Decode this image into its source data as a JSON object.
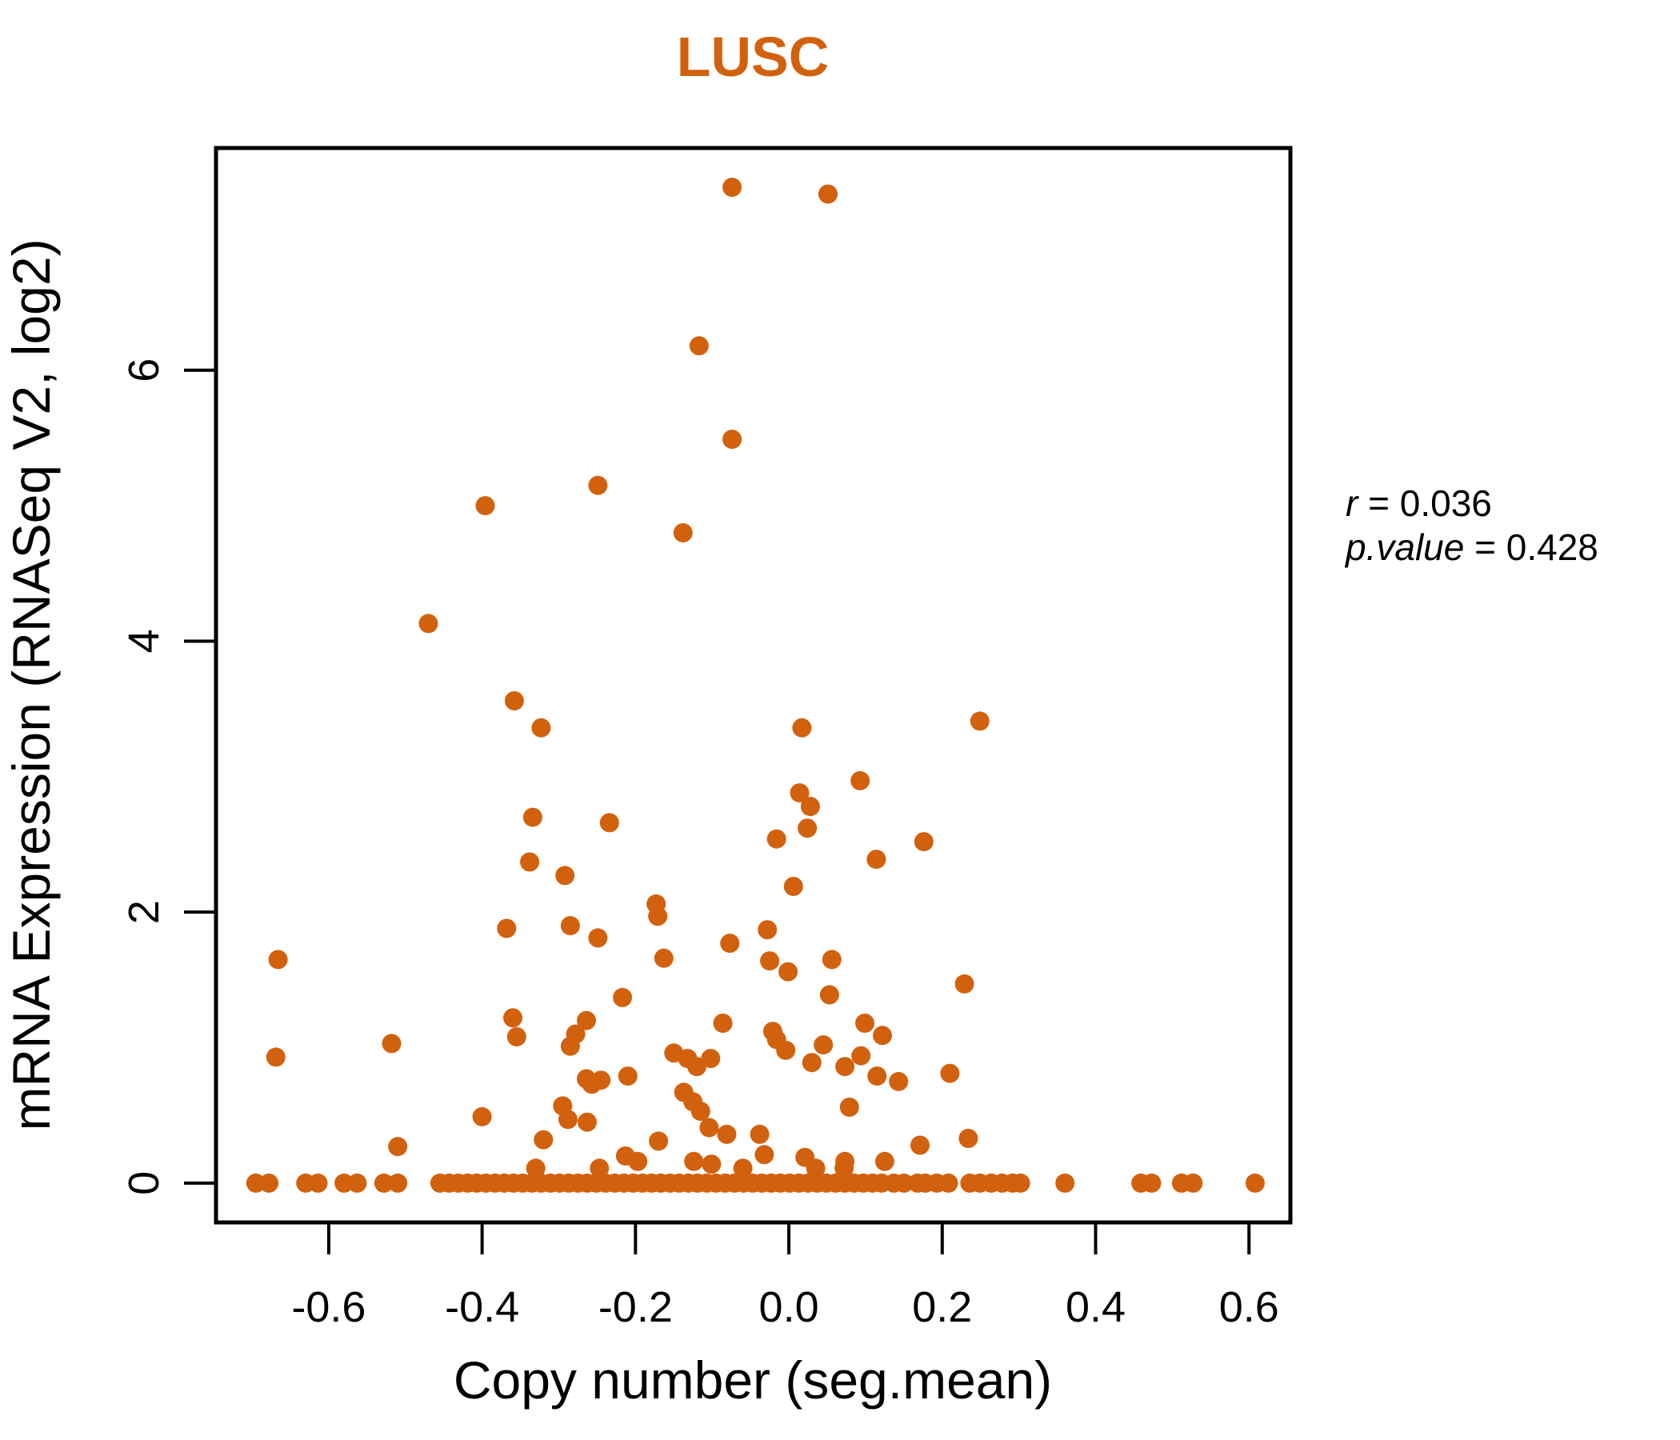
{
  "colors": {
    "accent": "#D2610D",
    "axis": "#000000",
    "background": "#FFFFFF"
  },
  "annotation": {
    "r_name": "r",
    "r_value": " = 0.036",
    "p_name": "p.value",
    "p_value": " = 0.428"
  },
  "chart_data": {
    "type": "scatter",
    "title": "LUSC",
    "xlabel": "Copy number (seg.mean)",
    "ylabel": "mRNA Expression (RNASeq V2, log2)",
    "xlim": [
      -0.747,
      0.654
    ],
    "ylim": [
      -0.29,
      7.64
    ],
    "x_ticks": [
      -0.6,
      -0.4,
      -0.2,
      0,
      0.2,
      0.4,
      0.6
    ],
    "x_tick_labels": [
      "-0.6",
      "-0.4",
      "-0.2",
      "0.0",
      "0.2",
      "0.4",
      "0.6"
    ],
    "y_ticks": [
      0,
      2,
      4,
      6
    ],
    "y_tick_labels": [
      "0",
      "2",
      "4",
      "6"
    ],
    "grid": false,
    "legend": "none",
    "point_color": "#D2610D",
    "point_radius_px": 12,
    "stats": {
      "r": 0.036,
      "p_value": 0.428
    },
    "points": [
      [
        -0.074,
        7.35
      ],
      [
        0.051,
        7.3
      ],
      [
        -0.117,
        6.18
      ],
      [
        -0.074,
        5.49
      ],
      [
        -0.249,
        5.15
      ],
      [
        -0.396,
        5.0
      ],
      [
        -0.138,
        4.8
      ],
      [
        -0.47,
        4.13
      ],
      [
        -0.358,
        3.56
      ],
      [
        -0.323,
        3.36
      ],
      [
        0.017,
        3.36
      ],
      [
        0.249,
        3.41
      ],
      [
        0.093,
        2.97
      ],
      [
        0.014,
        2.88
      ],
      [
        0.028,
        2.78
      ],
      [
        -0.334,
        2.7
      ],
      [
        -0.234,
        2.66
      ],
      [
        0.024,
        2.62
      ],
      [
        -0.016,
        2.54
      ],
      [
        0.176,
        2.52
      ],
      [
        0.114,
        2.39
      ],
      [
        -0.338,
        2.37
      ],
      [
        -0.292,
        2.27
      ],
      [
        0.006,
        2.19
      ],
      [
        -0.173,
        2.06
      ],
      [
        -0.171,
        1.97
      ],
      [
        -0.368,
        1.88
      ],
      [
        -0.285,
        1.9
      ],
      [
        -0.028,
        1.87
      ],
      [
        -0.249,
        1.81
      ],
      [
        -0.077,
        1.77
      ],
      [
        -0.163,
        1.66
      ],
      [
        -0.666,
        1.65
      ],
      [
        0.056,
        1.65
      ],
      [
        -0.025,
        1.64
      ],
      [
        -0.001,
        1.56
      ],
      [
        0.229,
        1.47
      ],
      [
        0.053,
        1.39
      ],
      [
        -0.217,
        1.37
      ],
      [
        -0.36,
        1.22
      ],
      [
        -0.264,
        1.2
      ],
      [
        -0.086,
        1.18
      ],
      [
        0.099,
        1.18
      ],
      [
        -0.021,
        1.12
      ],
      [
        -0.278,
        1.1
      ],
      [
        0.122,
        1.09
      ],
      [
        -0.355,
        1.08
      ],
      [
        -0.016,
        1.06
      ],
      [
        -0.518,
        1.03
      ],
      [
        0.045,
        1.02
      ],
      [
        -0.285,
        1.01
      ],
      [
        -0.004,
        0.98
      ],
      [
        -0.15,
        0.96
      ],
      [
        0.094,
        0.94
      ],
      [
        -0.669,
        0.93
      ],
      [
        -0.132,
        0.92
      ],
      [
        -0.102,
        0.92
      ],
      [
        0.03,
        0.89
      ],
      [
        0.073,
        0.86
      ],
      [
        -0.12,
        0.86
      ],
      [
        0.21,
        0.81
      ],
      [
        -0.21,
        0.79
      ],
      [
        0.115,
        0.79
      ],
      [
        -0.264,
        0.77
      ],
      [
        -0.245,
        0.76
      ],
      [
        0.143,
        0.75
      ],
      [
        -0.257,
        0.73
      ],
      [
        -0.137,
        0.67
      ],
      [
        -0.125,
        0.6
      ],
      [
        -0.295,
        0.57
      ],
      [
        0.079,
        0.56
      ],
      [
        -0.115,
        0.53
      ],
      [
        -0.4,
        0.49
      ],
      [
        -0.288,
        0.47
      ],
      [
        -0.263,
        0.45
      ],
      [
        -0.104,
        0.41
      ],
      [
        -0.081,
        0.36
      ],
      [
        -0.038,
        0.36
      ],
      [
        0.234,
        0.33
      ],
      [
        -0.32,
        0.32
      ],
      [
        -0.17,
        0.31
      ],
      [
        0.171,
        0.28
      ],
      [
        -0.51,
        0.27
      ],
      [
        -0.032,
        0.21
      ],
      [
        -0.213,
        0.2
      ],
      [
        0.021,
        0.19
      ],
      [
        -0.197,
        0.16
      ],
      [
        0.073,
        0.16
      ],
      [
        0.125,
        0.16
      ],
      [
        -0.124,
        0.16
      ],
      [
        -0.101,
        0.14
      ],
      [
        -0.33,
        0.11
      ],
      [
        -0.247,
        0.11
      ],
      [
        -0.06,
        0.11
      ],
      [
        0.035,
        0.11
      ],
      [
        0.072,
        0.11
      ],
      [
        -0.695,
        0
      ],
      [
        -0.678,
        0
      ],
      [
        -0.63,
        0
      ],
      [
        -0.614,
        0
      ],
      [
        -0.58,
        0
      ],
      [
        -0.563,
        0
      ],
      [
        -0.528,
        0
      ],
      [
        -0.51,
        0
      ],
      [
        -0.455,
        0
      ],
      [
        -0.443,
        0
      ],
      [
        -0.431,
        0
      ],
      [
        -0.419,
        0
      ],
      [
        -0.407,
        0
      ],
      [
        -0.395,
        0
      ],
      [
        -0.383,
        0
      ],
      [
        -0.371,
        0
      ],
      [
        -0.359,
        0
      ],
      [
        -0.347,
        0
      ],
      [
        -0.335,
        0
      ],
      [
        -0.323,
        0
      ],
      [
        -0.311,
        0
      ],
      [
        -0.299,
        0
      ],
      [
        -0.287,
        0
      ],
      [
        -0.275,
        0
      ],
      [
        -0.263,
        0
      ],
      [
        -0.251,
        0
      ],
      [
        -0.239,
        0
      ],
      [
        -0.227,
        0
      ],
      [
        -0.215,
        0
      ],
      [
        -0.203,
        0
      ],
      [
        -0.191,
        0
      ],
      [
        -0.179,
        0
      ],
      [
        -0.167,
        0
      ],
      [
        -0.155,
        0
      ],
      [
        -0.143,
        0
      ],
      [
        -0.131,
        0
      ],
      [
        -0.119,
        0
      ],
      [
        -0.107,
        0
      ],
      [
        -0.095,
        0
      ],
      [
        -0.083,
        0
      ],
      [
        -0.071,
        0
      ],
      [
        -0.059,
        0
      ],
      [
        -0.047,
        0
      ],
      [
        -0.035,
        0
      ],
      [
        -0.023,
        0
      ],
      [
        -0.011,
        0
      ],
      [
        0.001,
        0
      ],
      [
        0.013,
        0
      ],
      [
        0.025,
        0
      ],
      [
        0.037,
        0
      ],
      [
        0.049,
        0
      ],
      [
        0.061,
        0
      ],
      [
        0.073,
        0
      ],
      [
        0.085,
        0
      ],
      [
        0.097,
        0
      ],
      [
        0.109,
        0
      ],
      [
        0.121,
        0
      ],
      [
        0.137,
        0
      ],
      [
        0.15,
        0
      ],
      [
        0.168,
        0
      ],
      [
        0.178,
        0
      ],
      [
        0.193,
        0
      ],
      [
        0.208,
        0
      ],
      [
        0.236,
        0
      ],
      [
        0.249,
        0
      ],
      [
        0.264,
        0
      ],
      [
        0.278,
        0
      ],
      [
        0.292,
        0
      ],
      [
        0.302,
        0
      ],
      [
        0.36,
        0
      ],
      [
        0.459,
        0
      ],
      [
        0.473,
        0
      ],
      [
        0.512,
        0
      ],
      [
        0.527,
        0
      ],
      [
        0.608,
        0
      ]
    ]
  }
}
